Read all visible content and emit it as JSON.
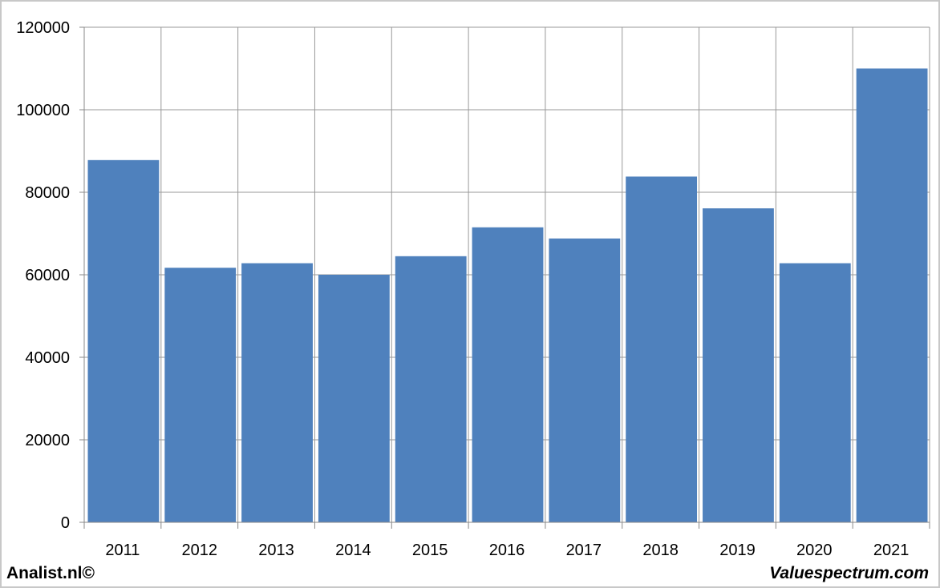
{
  "chart_data": {
    "type": "bar",
    "categories": [
      "2011",
      "2012",
      "2013",
      "2014",
      "2015",
      "2016",
      "2017",
      "2018",
      "2019",
      "2020",
      "2021"
    ],
    "values": [
      87800,
      61700,
      62800,
      60000,
      64500,
      71500,
      68800,
      83800,
      76100,
      62800,
      110000
    ],
    "title": "",
    "xlabel": "",
    "ylabel": "",
    "ylim": [
      0,
      120000
    ],
    "yticks": [
      0,
      20000,
      40000,
      60000,
      80000,
      100000,
      120000
    ],
    "grid": true,
    "bar_color": "#4f81bd",
    "grid_color": "#999999"
  },
  "footer": {
    "left": "Analist.nl©",
    "right": "Valuespectrum.com"
  }
}
